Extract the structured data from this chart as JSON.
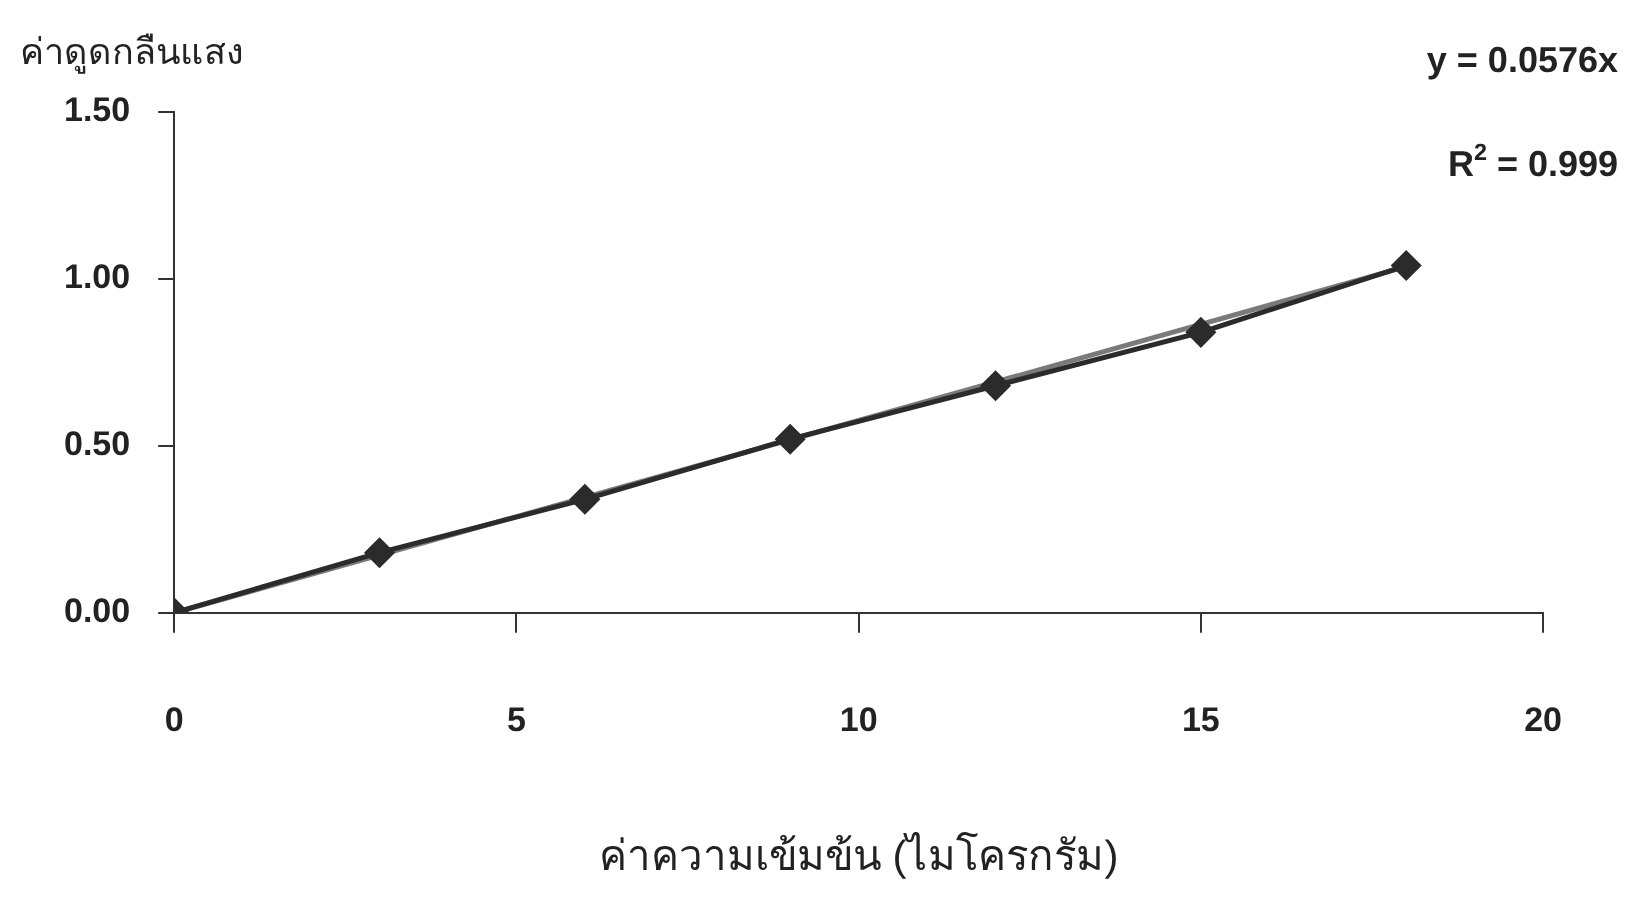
{
  "chart_data": {
    "type": "line",
    "xlabel": "ค่าความเข้มข้น (ไมโครกรัม)",
    "ylabel": "ค่าดูดกลืนแสง",
    "annotations": [
      "y = 0.0576x",
      "R$^{2}$ = 0.999"
    ],
    "x": [
      0,
      3,
      6,
      9,
      12,
      15,
      18
    ],
    "series": [
      {
        "color": "#2b2b2b",
        "marker": "diamond",
        "values": [
          0,
          0.18,
          0.34,
          0.52,
          0.68,
          0.84,
          1.04
        ]
      },
      {
        "type": "line",
        "color": "#7a7a7a",
        "marker": "none",
        "x": [
          0,
          18
        ],
        "values": [
          0,
          1.037
        ]
      }
    ],
    "xlim": [
      0,
      20
    ],
    "xticks": [
      0,
      5,
      10,
      15,
      20
    ],
    "ylim": [
      0,
      1.5
    ],
    "yticks": [
      {
        "value": 0,
        "label": "0.00"
      },
      {
        "value": 0.5,
        "label": "0.50"
      },
      {
        "value": 1,
        "label": "1.00"
      },
      {
        "value": 1.5,
        "label": "1.50"
      }
    ],
    "grid": false,
    "legend": false
  }
}
